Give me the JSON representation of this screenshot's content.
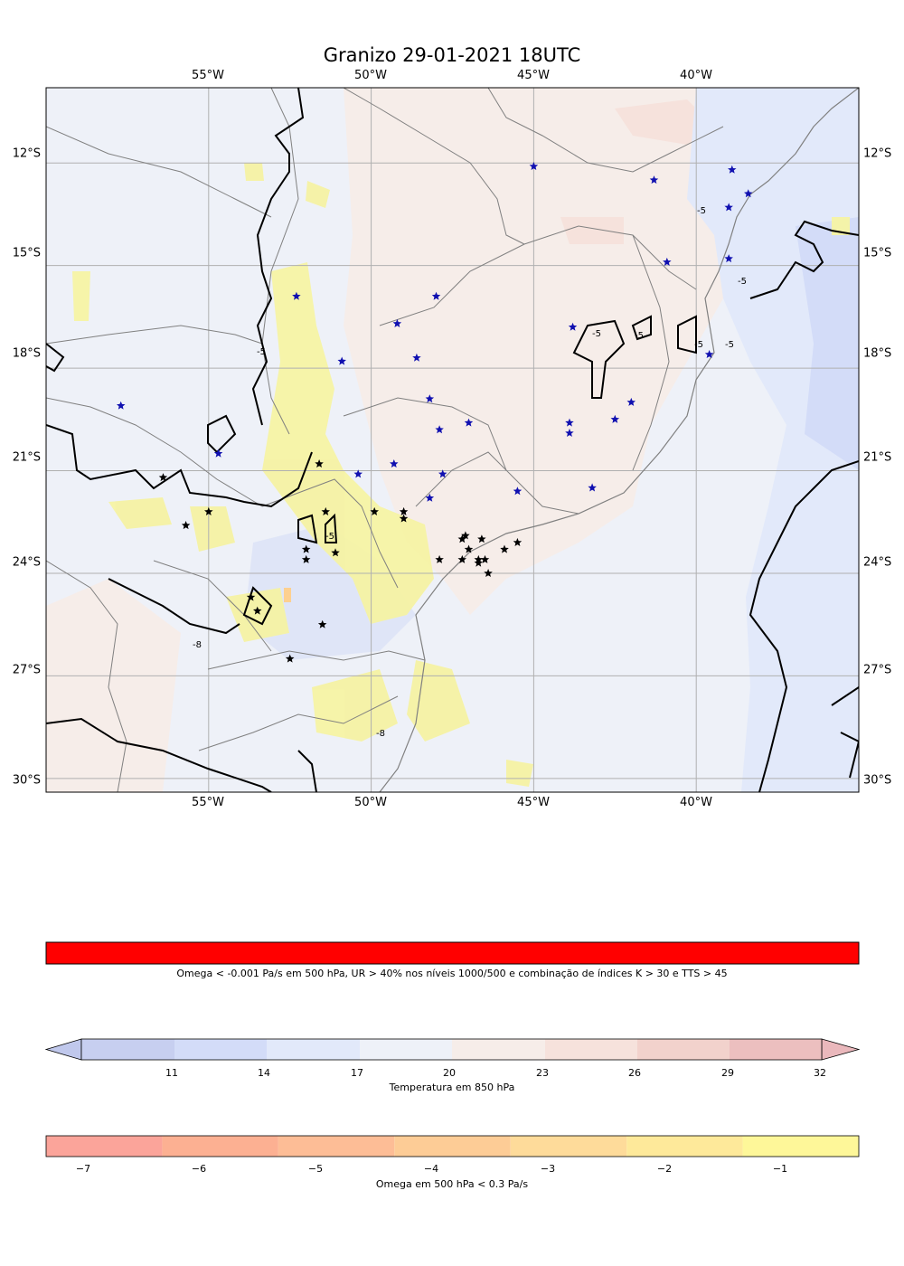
{
  "title": "Granizo 29-01-2021 18UTC",
  "map": {
    "lon_ticks": [
      "55°W",
      "50°W",
      "45°W",
      "40°W"
    ],
    "lat_ticks": [
      "12°S",
      "15°S",
      "18°S",
      "21°S",
      "24°S",
      "27°S",
      "30°S"
    ],
    "lon_range": [
      -60,
      -35
    ],
    "lat_range": [
      -30.4,
      -9.8
    ],
    "contour_labels": [
      "-5",
      "-5",
      "-5",
      "-5",
      "-5",
      "-5",
      "-5",
      "-5",
      "-8",
      "-8"
    ],
    "blue_star_color": "#1010b0",
    "black_star_color": "#000000",
    "blue_stars": [
      [
        -45.0,
        -12.1
      ],
      [
        -41.3,
        -12.5
      ],
      [
        -38.9,
        -12.2
      ],
      [
        -39.0,
        -13.3
      ],
      [
        -38.4,
        -12.9
      ],
      [
        -40.9,
        -14.9
      ],
      [
        -39.0,
        -14.8
      ],
      [
        -52.3,
        -15.9
      ],
      [
        -48.0,
        -15.9
      ],
      [
        -49.2,
        -16.7
      ],
      [
        -43.8,
        -16.8
      ],
      [
        -39.6,
        -17.6
      ],
      [
        -50.9,
        -17.8
      ],
      [
        -48.6,
        -17.7
      ],
      [
        -48.2,
        -18.9
      ],
      [
        -42.0,
        -19.0
      ],
      [
        -57.7,
        -19.1
      ],
      [
        -42.5,
        -19.5
      ],
      [
        -47.0,
        -19.6
      ],
      [
        -43.9,
        -19.6
      ],
      [
        -43.9,
        -19.9
      ],
      [
        -47.9,
        -19.8
      ],
      [
        -54.7,
        -20.5
      ],
      [
        -49.3,
        -20.8
      ],
      [
        -50.4,
        -21.1
      ],
      [
        -47.8,
        -21.1
      ],
      [
        -45.5,
        -21.6
      ],
      [
        -43.2,
        -21.5
      ],
      [
        -48.2,
        -21.8
      ]
    ],
    "black_stars": [
      [
        -51.6,
        -20.8
      ],
      [
        -56.4,
        -21.2
      ],
      [
        -55.0,
        -22.2
      ],
      [
        -51.4,
        -22.2
      ],
      [
        -49.9,
        -22.2
      ],
      [
        -49.0,
        -22.2
      ],
      [
        -49.0,
        -22.4
      ],
      [
        -55.7,
        -22.6
      ],
      [
        -47.2,
        -23.0
      ],
      [
        -47.1,
        -22.9
      ],
      [
        -46.6,
        -23.0
      ],
      [
        -45.5,
        -23.1
      ],
      [
        -47.0,
        -23.3
      ],
      [
        -45.9,
        -23.3
      ],
      [
        -52.0,
        -23.3
      ],
      [
        -51.1,
        -23.4
      ],
      [
        -47.9,
        -23.6
      ],
      [
        -47.2,
        -23.6
      ],
      [
        -46.5,
        -23.6
      ],
      [
        -46.7,
        -23.7
      ],
      [
        -52.0,
        -23.6
      ],
      [
        -46.4,
        -24.0
      ],
      [
        -46.7,
        -23.6
      ],
      [
        -53.7,
        -24.7
      ],
      [
        -53.5,
        -25.1
      ],
      [
        -51.5,
        -25.5
      ],
      [
        -52.5,
        -26.5
      ]
    ]
  },
  "colorbar1": {
    "color": "#ff0000",
    "label": "Omega < -0.001 Pa/s em 500 hPa, UR > 40% nos níveis 1000/500 e combinação de índices K > 30 e TTS > 45"
  },
  "colorbar2": {
    "label": "Temperatura em 850 hPa",
    "ticks": [
      "11",
      "14",
      "17",
      "20",
      "23",
      "26",
      "29",
      "32"
    ],
    "colors": [
      "#c7cff0",
      "#d3dcf8",
      "#e2e9fa",
      "#eef1f8",
      "#f6ede9",
      "#f6e2dc",
      "#f2d2cc",
      "#ecbfbf"
    ],
    "under_color": "#c0c8ec",
    "over_color": "#eab8bc"
  },
  "colorbar3": {
    "label": "Omega em 500 hPa < 0.3 Pa/s",
    "ticks": [
      "−7",
      "−6",
      "−5",
      "−4",
      "−3",
      "−2",
      "−1"
    ],
    "colors": [
      "#fba49a",
      "#fcb092",
      "#fdbd96",
      "#fdcc96",
      "#fedb9a",
      "#fee99a",
      "#fef799"
    ]
  }
}
